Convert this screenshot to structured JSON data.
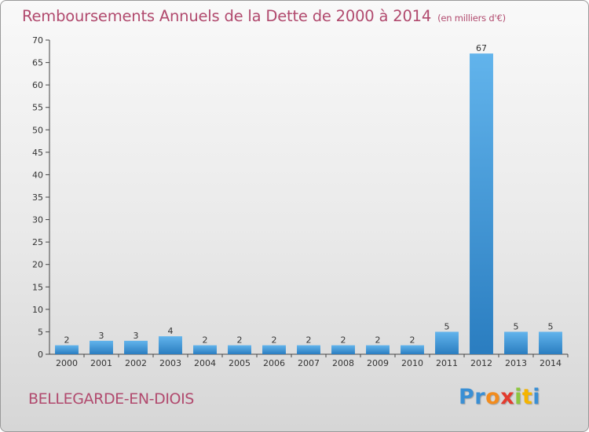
{
  "header": {
    "title": "Remboursements Annuels de la Dette de 2000 à 2014",
    "unit": "(en milliers d'€)"
  },
  "footer": {
    "town": "BELLEGARDE-EN-DIOIS",
    "logo_letters": [
      "P",
      "r",
      "o",
      "x",
      "i",
      "t",
      "i"
    ],
    "logo_colors": [
      "#3a8fd4",
      "#3a8fd4",
      "#f28c1e",
      "#e33b2e",
      "#8dc63f",
      "#f5b400",
      "#3a8fd4"
    ]
  },
  "colors": {
    "bar_light": "#62b4ec",
    "bar_dark": "#2a7dc0",
    "axis": "#444444",
    "grid": "#bdbdbd"
  },
  "chart_data": {
    "type": "bar",
    "title": "Remboursements Annuels de la Dette de 2000 à 2014",
    "unit": "(en milliers d'€)",
    "categories": [
      "2000",
      "2001",
      "2002",
      "2003",
      "2004",
      "2005",
      "2006",
      "2007",
      "2008",
      "2009",
      "2010",
      "2011",
      "2012",
      "2013",
      "2014"
    ],
    "values": [
      2,
      3,
      3,
      4,
      2,
      2,
      2,
      2,
      2,
      2,
      2,
      5,
      67,
      5,
      5
    ],
    "ylim": [
      0,
      70
    ],
    "yticks": [
      0,
      5,
      10,
      15,
      20,
      25,
      30,
      35,
      40,
      45,
      50,
      55,
      60,
      65,
      70
    ],
    "grid": false
  }
}
